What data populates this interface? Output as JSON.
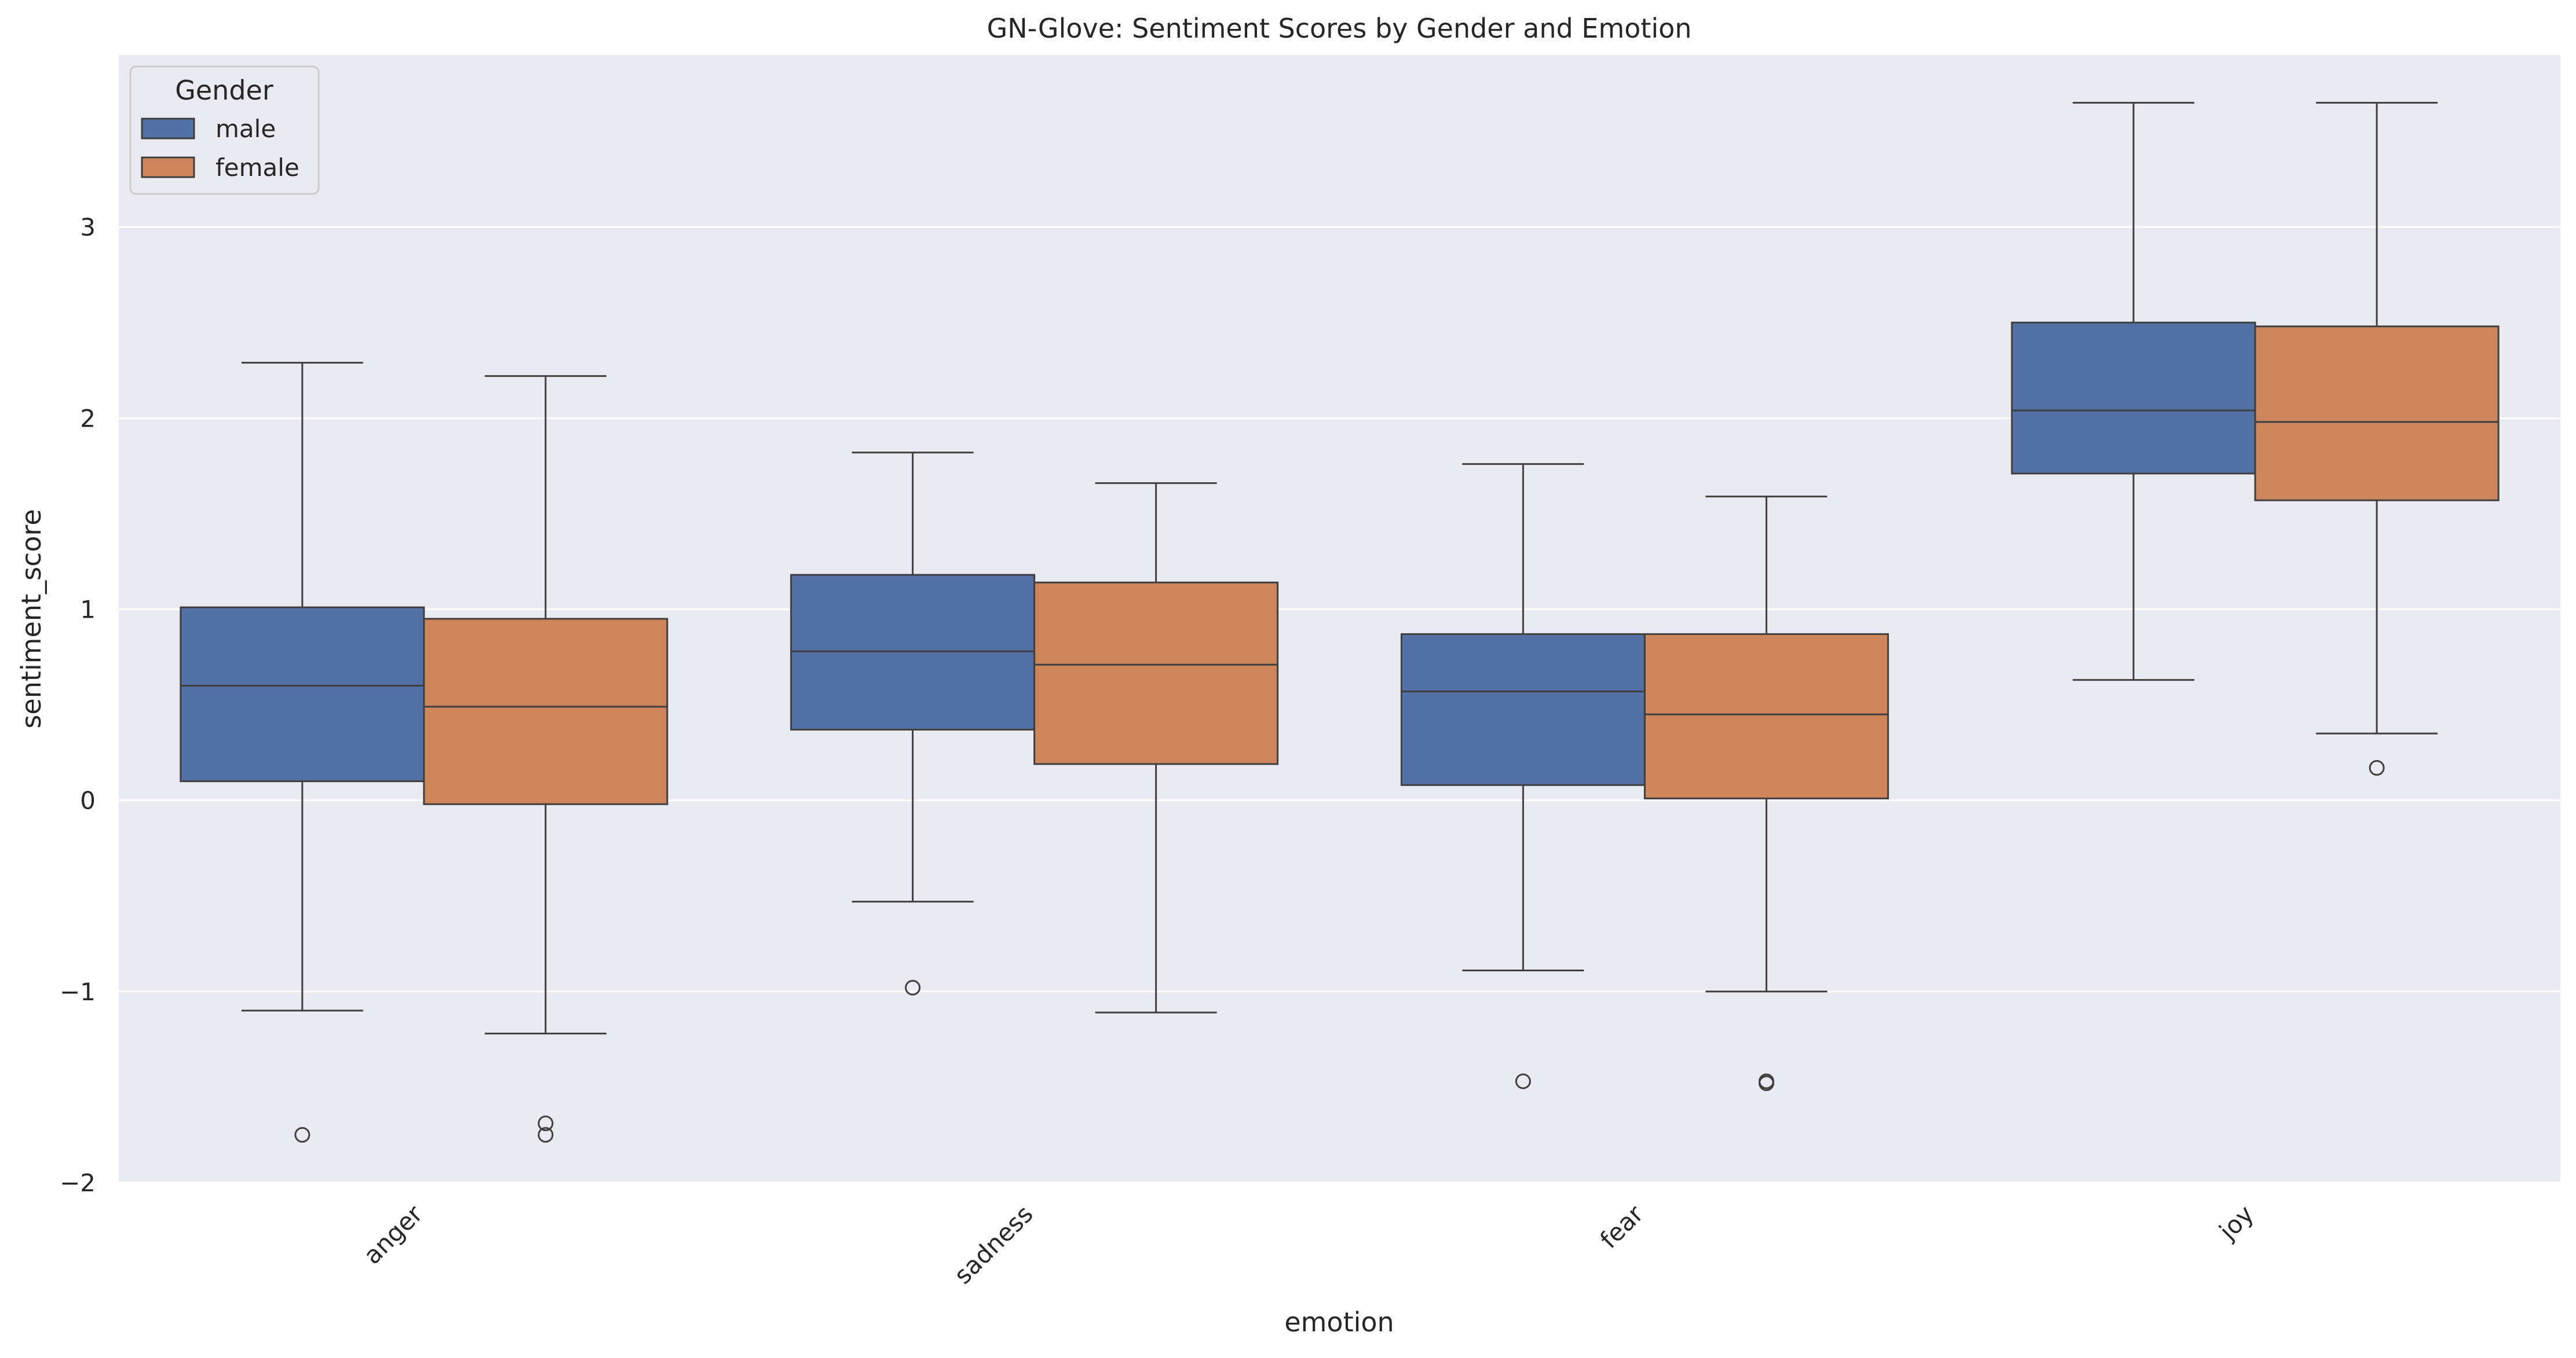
{
  "chart_data": {
    "type": "box",
    "title": "GN-Glove: Sentiment Scores by Gender and Emotion",
    "xlabel": "emotion",
    "ylabel": "sentiment_score",
    "categories": [
      "anger",
      "sadness",
      "fear",
      "joy"
    ],
    "ylim": [
      -2,
      3.9
    ],
    "yticks": [
      -2,
      -1,
      0,
      1,
      2,
      3
    ],
    "ytick_labels": [
      "−2",
      "−1",
      "0",
      "1",
      "2",
      "3"
    ],
    "grid": true,
    "legend": {
      "title": "Gender",
      "position": "top-left"
    },
    "series": [
      {
        "name": "male",
        "color": "#5471a5",
        "boxes": [
          {
            "category": "anger",
            "whisker_low": -1.1,
            "q1": 0.1,
            "median": 0.6,
            "q3": 1.01,
            "whisker_high": 2.29,
            "outliers": [
              -1.75
            ]
          },
          {
            "category": "sadness",
            "whisker_low": -0.53,
            "q1": 0.37,
            "median": 0.78,
            "q3": 1.18,
            "whisker_high": 1.82,
            "outliers": [
              -0.98
            ]
          },
          {
            "category": "fear",
            "whisker_low": -0.89,
            "q1": 0.08,
            "median": 0.57,
            "q3": 0.87,
            "whisker_high": 1.76,
            "outliers": [
              -1.47
            ]
          },
          {
            "category": "joy",
            "whisker_low": 0.63,
            "q1": 1.71,
            "median": 2.04,
            "q3": 2.5,
            "whisker_high": 3.65,
            "outliers": []
          }
        ]
      },
      {
        "name": "female",
        "color": "#cd865c",
        "boxes": [
          {
            "category": "anger",
            "whisker_low": -1.22,
            "q1": -0.02,
            "median": 0.49,
            "q3": 0.95,
            "whisker_high": 2.22,
            "outliers": [
              -1.75,
              -1.69
            ]
          },
          {
            "category": "sadness",
            "whisker_low": -1.11,
            "q1": 0.19,
            "median": 0.71,
            "q3": 1.14,
            "whisker_high": 1.66,
            "outliers": []
          },
          {
            "category": "fear",
            "whisker_low": -1.0,
            "q1": 0.01,
            "median": 0.45,
            "q3": 0.87,
            "whisker_high": 1.59,
            "outliers": [
              -1.47,
              -1.48
            ]
          },
          {
            "category": "joy",
            "whisker_low": 0.35,
            "q1": 1.57,
            "median": 1.98,
            "q3": 2.48,
            "whisker_high": 3.65,
            "outliers": [
              0.17
            ]
          }
        ]
      }
    ]
  }
}
